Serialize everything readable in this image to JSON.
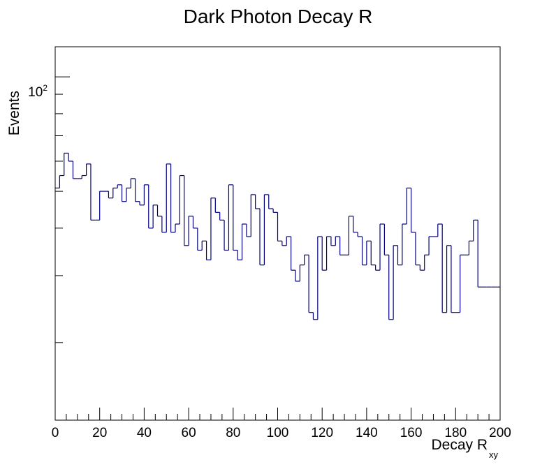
{
  "chart_data": {
    "type": "histogram",
    "title": "Dark Photon Decay R",
    "xlabel": "Decay R",
    "xlabel_subscript": "xy",
    "ylabel": "Events",
    "xlim": [
      0,
      200
    ],
    "ylim": [
      12.5,
      120
    ],
    "y_scale": "log",
    "grid": false,
    "line_color": "#000080",
    "x_ticks": [
      "0",
      "20",
      "40",
      "60",
      "80",
      "100",
      "120",
      "140",
      "160",
      "180",
      "200"
    ],
    "y_tick_label": {
      "base": "10",
      "exponent": "2"
    },
    "bin_width": 2,
    "bin_start": 0,
    "values": [
      51,
      55,
      63,
      60,
      54,
      54,
      55,
      59,
      42,
      42,
      50,
      50,
      48,
      51,
      52,
      47,
      51,
      54,
      47,
      46,
      52,
      40,
      46,
      43,
      39,
      59,
      39,
      41,
      55,
      36,
      43,
      40,
      35,
      37,
      33,
      48,
      44,
      42,
      35,
      52,
      35,
      33,
      41,
      38,
      49,
      45,
      32,
      49,
      45,
      44,
      37,
      36,
      38,
      31,
      29,
      32,
      34,
      24,
      23,
      38,
      31,
      38,
      36,
      38,
      34,
      34,
      43,
      39,
      38,
      32,
      37,
      32,
      31,
      41,
      34,
      23,
      36,
      32,
      41,
      51,
      39,
      32,
      31,
      34,
      38,
      38,
      41,
      24,
      36,
      24,
      24,
      34,
      34,
      37,
      42,
      28,
      28,
      28,
      28,
      28
    ]
  }
}
